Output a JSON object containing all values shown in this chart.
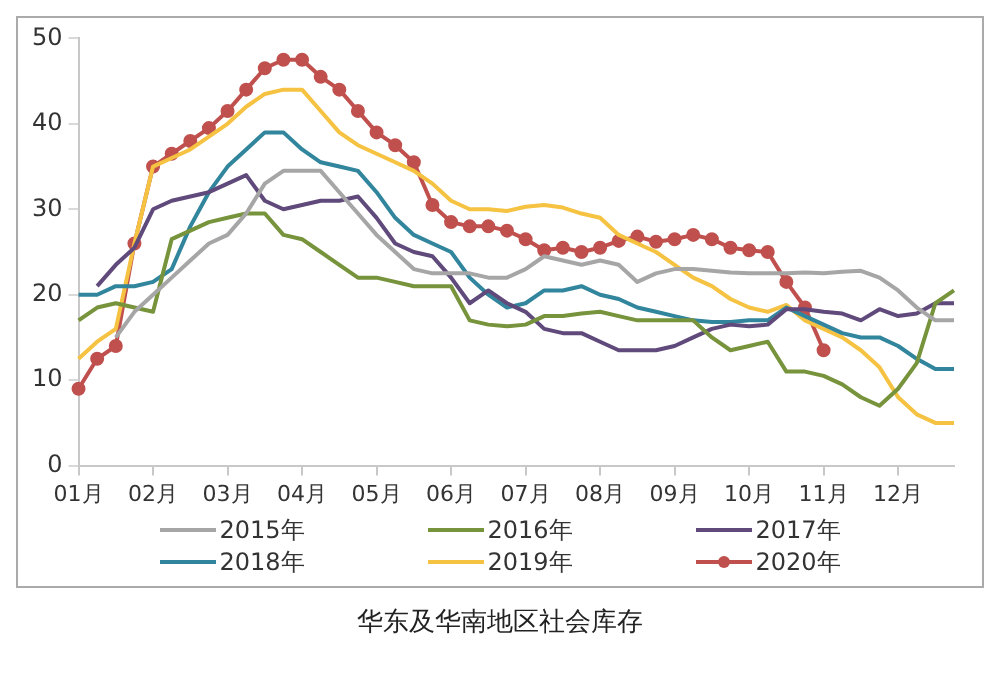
{
  "chart_data": {
    "type": "line",
    "title": "华东及华南地区社会库存",
    "categories": [
      "01月",
      null,
      null,
      null,
      "02月",
      null,
      null,
      null,
      "03月",
      null,
      null,
      null,
      "04月",
      null,
      null,
      null,
      "05月",
      null,
      null,
      null,
      "06月",
      null,
      null,
      null,
      "07月",
      null,
      null,
      null,
      "08月",
      null,
      null,
      null,
      "09月",
      null,
      null,
      null,
      "10月",
      null,
      null,
      null,
      "11月",
      null,
      null,
      null,
      "12月",
      null,
      null,
      null
    ],
    "ylim": [
      0,
      50
    ],
    "yticks": [
      0,
      10,
      20,
      30,
      40,
      50
    ],
    "grid": false,
    "legend": "bottom",
    "marker": "none",
    "series": [
      {
        "name": "2015年",
        "color": "#a6a6a6",
        "values": [
          null,
          null,
          15,
          18,
          20,
          22,
          24,
          26,
          27,
          29.5,
          33,
          34.5,
          34.5,
          34.5,
          32,
          29.5,
          27,
          25,
          23,
          22.5,
          22.5,
          22.5,
          22,
          22,
          23,
          24.5,
          24,
          23.5,
          24,
          23.5,
          21.5,
          22.5,
          23,
          23,
          22.8,
          22.6,
          22.5,
          22.5,
          22.5,
          22.6,
          22.5,
          22.7,
          22.8,
          22,
          20.5,
          18.5,
          17,
          17
        ]
      },
      {
        "name": "2016年",
        "color": "#77933c",
        "values": [
          17,
          18.5,
          19,
          18.5,
          18,
          26.5,
          27.5,
          28.5,
          29,
          29.5,
          29.5,
          27,
          26.5,
          25,
          23.5,
          22,
          22,
          21.5,
          21,
          21,
          21,
          17,
          16.5,
          16.3,
          16.5,
          17.5,
          17.5,
          17.8,
          18,
          17.5,
          17,
          17,
          17,
          17,
          15,
          13.5,
          14,
          14.5,
          11,
          11,
          10.5,
          9.5,
          8,
          7,
          9,
          12,
          19,
          20.5
        ]
      },
      {
        "name": "2017年",
        "color": "#604a7b",
        "values": [
          null,
          21,
          23.5,
          25.5,
          30,
          31,
          31.5,
          32,
          33,
          34,
          31,
          30,
          30.5,
          31,
          31,
          31.5,
          29,
          26,
          25,
          24.5,
          22,
          19,
          20.5,
          19,
          18,
          16,
          15.5,
          15.5,
          14.5,
          13.5,
          13.5,
          13.5,
          14,
          15,
          16,
          16.5,
          16.3,
          16.5,
          18.3,
          18.3,
          18,
          17.8,
          17,
          18.3,
          17.5,
          17.8,
          19,
          19
        ]
      },
      {
        "name": "2018年",
        "color": "#31859c",
        "values": [
          20,
          20,
          21,
          21,
          21.5,
          23,
          28,
          32,
          35,
          37,
          39,
          39,
          37,
          35.5,
          35,
          34.5,
          32,
          29,
          27,
          26,
          25,
          22,
          20,
          18.5,
          19,
          20.5,
          20.5,
          21,
          20,
          19.5,
          18.5,
          18,
          17.5,
          17,
          16.8,
          16.8,
          17,
          17,
          18.5,
          17.5,
          16.5,
          15.5,
          15,
          15,
          14,
          12.5,
          11.3,
          11.3
        ]
      },
      {
        "name": "2019年",
        "color": "#f5c242",
        "values": [
          12.5,
          14.5,
          16,
          26,
          35,
          36,
          37,
          38.5,
          40,
          42,
          43.5,
          44,
          44,
          41.5,
          39,
          37.5,
          36.5,
          35.5,
          34.5,
          33,
          31,
          30,
          30,
          29.8,
          30.3,
          30.5,
          30.2,
          29.5,
          29,
          27,
          26,
          25,
          23.5,
          22,
          21,
          19.5,
          18.5,
          18,
          18.8,
          17,
          16,
          15,
          13.5,
          11.5,
          8,
          6,
          5,
          5
        ]
      },
      {
        "name": "2020年",
        "color": "#c0504d",
        "marker": "circle",
        "values": [
          9,
          12.5,
          14,
          26,
          35,
          36.5,
          38,
          39.5,
          41.5,
          44,
          46.5,
          47.5,
          47.5,
          45.5,
          44,
          41.5,
          39,
          37.5,
          35.5,
          30.5,
          28.5,
          28,
          28,
          27.5,
          26.5,
          25.2,
          25.5,
          25,
          25.5,
          26.3,
          26.8,
          26.2,
          26.5,
          27,
          26.5,
          25.5,
          25.2,
          25,
          21.5,
          18.5,
          13.5,
          null,
          null,
          null,
          null,
          null,
          null,
          null
        ]
      }
    ]
  }
}
